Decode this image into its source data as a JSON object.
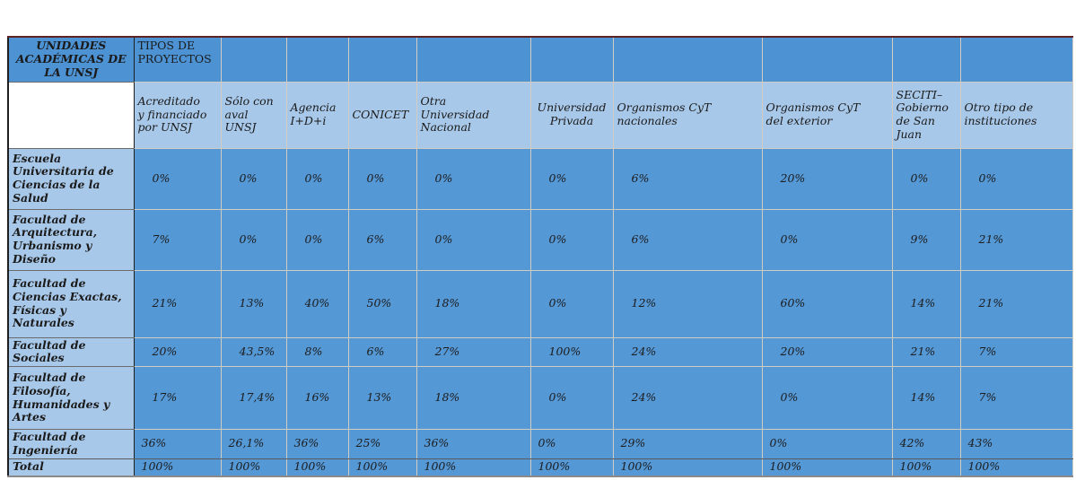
{
  "table": {
    "corner_header": "UNIDADES ACADÉMICAS DE LA UNSJ",
    "group_header": "TIPOS DE PROYECTOS",
    "columns": [
      "Acreditado y financiado por UNSJ",
      "Sólo con aval UNSJ",
      "Agencia I+D+i",
      "CONICET",
      "Otra Universidad Nacional",
      "Universidad Privada",
      "Organismos CyT nacionales",
      "Organismos CyT del exterior",
      "SECITI–Gobierno de San Juan",
      "Otro tipo de instituciones"
    ],
    "rows": [
      {
        "label": "Escuela Universitaria de Ciencias de la Salud",
        "values": [
          "0%",
          "0%",
          "0%",
          "0%",
          "0%",
          "0%",
          "6%",
          "20%",
          "0%",
          "0%"
        ]
      },
      {
        "label": "Facultad de Arquitectura, Urbanismo y Diseño",
        "values": [
          "7%",
          "0%",
          "0%",
          "6%",
          "0%",
          "0%",
          "6%",
          "0%",
          "9%",
          "21%"
        ]
      },
      {
        "label": "Facultad de Ciencias Exactas, Físicas y Naturales",
        "values": [
          "21%",
          "13%",
          "40%",
          "50%",
          "18%",
          "0%",
          "12%",
          "60%",
          "14%",
          "21%"
        ]
      },
      {
        "label": "Facultad de Sociales",
        "values": [
          "20%",
          "43,5%",
          "8%",
          "6%",
          "27%",
          "100%",
          "24%",
          "20%",
          "21%",
          "7%"
        ]
      },
      {
        "label": "Facultad de Filosofía, Humanidades y Artes",
        "values": [
          "17%",
          "17,4%",
          "16%",
          "13%",
          "18%",
          "0%",
          "24%",
          "0%",
          "14%",
          "7%"
        ]
      },
      {
        "label": "Facultad de Ingeniería",
        "values": [
          "36%",
          "26,1%",
          "36%",
          "25%",
          "36%",
          "0%",
          "29%",
          "0%",
          "42%",
          "43%"
        ]
      },
      {
        "label": "Total",
        "values": [
          "100%",
          "100%",
          "100%",
          "100%",
          "100%",
          "100%",
          "100%",
          "100%",
          "100%",
          "100%"
        ]
      }
    ]
  },
  "colors": {
    "header_blue": "#4d92d3",
    "data_blue": "#5598d6",
    "light_blue": "#a8c8e9",
    "gridline": "#d2ccc2",
    "top_border_maroon": "#5e2423",
    "dark_border": "#1f1f1f",
    "text": "#1a1a1a"
  }
}
